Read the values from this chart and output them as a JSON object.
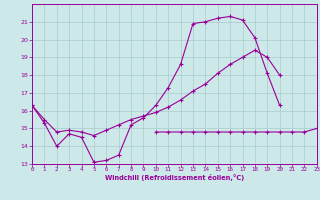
{
  "xlabel": "Windchill (Refroidissement éolien,°C)",
  "bg_color": "#cce8e8",
  "grid_color": "#aacccc",
  "line_color": "#990099",
  "x_min": 0,
  "x_max": 23,
  "y_min": 13,
  "y_max": 22,
  "line1_y": [
    16.3,
    15.3,
    14.0,
    14.7,
    14.5,
    13.1,
    13.2,
    13.5,
    15.2,
    15.6,
    16.3,
    17.3,
    18.6,
    20.9,
    21.0,
    21.2,
    21.3,
    21.1,
    20.1,
    18.1,
    16.3,
    null,
    null,
    null
  ],
  "line2_y": [
    16.3,
    15.5,
    14.8,
    14.9,
    14.8,
    14.6,
    14.9,
    15.2,
    15.5,
    15.7,
    15.9,
    16.2,
    16.6,
    17.1,
    17.5,
    18.1,
    18.6,
    19.0,
    19.4,
    19.0,
    18.0,
    null,
    null,
    null
  ],
  "line3_y": [
    null,
    null,
    null,
    null,
    null,
    null,
    null,
    null,
    null,
    null,
    14.8,
    14.8,
    14.8,
    14.8,
    14.8,
    14.8,
    14.8,
    14.8,
    14.8,
    14.8,
    14.8,
    14.8,
    14.8,
    15.0
  ],
  "yticks": [
    13,
    14,
    15,
    16,
    17,
    18,
    19,
    20,
    21
  ],
  "xticks": [
    0,
    1,
    2,
    3,
    4,
    5,
    6,
    7,
    8,
    9,
    10,
    11,
    12,
    13,
    14,
    15,
    16,
    17,
    18,
    19,
    20,
    21,
    22,
    23
  ]
}
